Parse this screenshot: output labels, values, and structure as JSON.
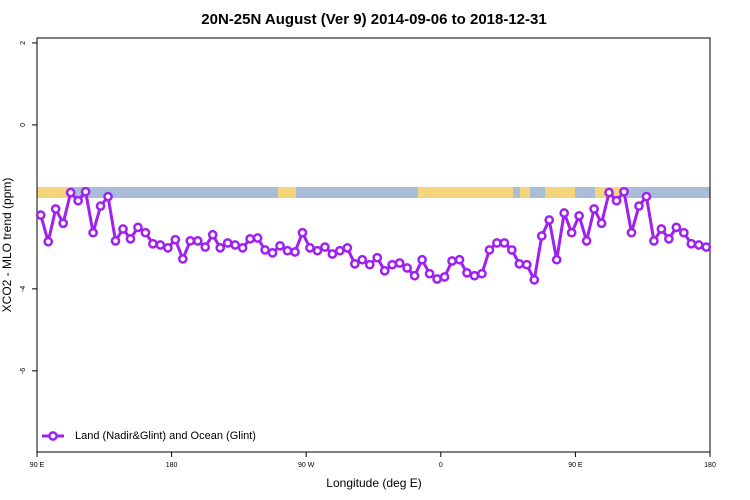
{
  "chart_data": {
    "type": "line",
    "title": "20N-25N August (Ver 9)   2014-09-06 to 2018-12-31",
    "xlabel": "Longitude (deg E)",
    "ylabel": "XCO2 - MLO trend (ppm)",
    "xlim": [
      90,
      540
    ],
    "ylim": [
      -7.98,
      2.12
    ],
    "xticks": [
      {
        "value": 90,
        "label": "90 E"
      },
      180,
      {
        "value": 270,
        "label": "90 W"
      },
      {
        "value": 360,
        "label": "0"
      },
      {
        "value": 450,
        "label": "90 E"
      },
      {
        "value": 540,
        "label": "180"
      }
    ],
    "yticks": [
      2,
      0,
      -4,
      -6
    ],
    "legend": "bottomleft",
    "x": [
      92.5,
      97.5,
      102.5,
      107.5,
      112.5,
      117.5,
      122.5,
      127.5,
      132.5,
      137.5,
      142.5,
      147.5,
      152.5,
      157.5,
      162.5,
      167.5,
      172.5,
      177.5,
      182.5,
      187.5,
      192.5,
      197.5,
      202.5,
      207.5,
      212.5,
      217.5,
      222.5,
      227.5,
      232.5,
      237.5,
      242.5,
      247.5,
      252.5,
      257.5,
      262.5,
      267.5,
      272.5,
      277.5,
      282.5,
      287.5,
      292.5,
      297.5,
      302.5,
      307.5,
      312.5,
      317.5,
      322.5,
      327.5,
      332.5,
      337.5,
      342.5,
      347.5,
      352.5,
      357.5,
      362.5,
      367.5,
      372.5,
      377.5,
      382.5,
      387.5,
      392.5,
      397.5,
      402.5,
      407.5,
      412.5,
      417.5,
      422.5,
      427.5,
      432.5,
      437.5,
      442.5,
      447.5,
      452.5,
      457.5,
      462.5,
      467.5,
      472.5,
      477.5,
      482.5,
      487.5,
      492.5,
      497.5,
      502.5,
      507.5,
      512.5,
      517.5,
      522.5,
      527.5,
      532.5,
      537.5
    ],
    "series": [
      {
        "name": "Land (Nadir&Glint) and Ocean (Glint)",
        "color": "#a020f0",
        "values": [
          -2.2,
          -2.85,
          -2.05,
          -2.4,
          -1.65,
          -1.85,
          -1.63,
          -2.63,
          -1.98,
          -1.75,
          -2.83,
          -2.54,
          -2.78,
          -2.5,
          -2.63,
          -2.9,
          -2.93,
          -3.0,
          -2.8,
          -3.27,
          -2.83,
          -2.83,
          -2.98,
          -2.68,
          -3.0,
          -2.88,
          -2.93,
          -3.0,
          -2.78,
          -2.76,
          -3.05,
          -3.12,
          -2.95,
          -3.07,
          -3.1,
          -2.63,
          -3.0,
          -3.07,
          -2.98,
          -3.15,
          -3.07,
          -3.0,
          -3.39,
          -3.29,
          -3.41,
          -3.24,
          -3.56,
          -3.41,
          -3.37,
          -3.49,
          -3.68,
          -3.29,
          -3.63,
          -3.76,
          -3.71,
          -3.32,
          -3.29,
          -3.61,
          -3.68,
          -3.63,
          -3.05,
          -2.88,
          -2.88,
          -3.05,
          -3.39,
          -3.41,
          -3.78,
          -2.71,
          -2.32,
          -3.29,
          -2.15,
          -2.63,
          -2.22,
          -2.83,
          -2.05,
          -2.4,
          -1.65,
          -1.85,
          -1.63,
          -2.63,
          -1.98,
          -1.75,
          -2.83,
          -2.54,
          -2.78,
          -2.5,
          -2.63,
          -2.9,
          -2.93,
          -2.98
        ]
      }
    ]
  }
}
